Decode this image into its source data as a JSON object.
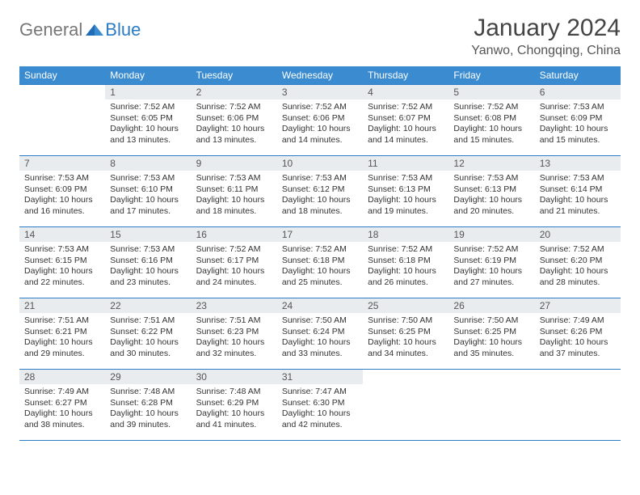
{
  "brand": {
    "part1": "General",
    "part2": "Blue",
    "logo_color": "#2b7cc4"
  },
  "title": "January 2024",
  "location": "Yanwo, Chongqing, China",
  "colors": {
    "header_bg": "#3a8bd0",
    "rule": "#2b7cc4",
    "daynum_bg": "#e9ecef"
  },
  "weekdays": [
    "Sunday",
    "Monday",
    "Tuesday",
    "Wednesday",
    "Thursday",
    "Friday",
    "Saturday"
  ],
  "weeks": [
    [
      null,
      {
        "n": "1",
        "sr": "7:52 AM",
        "ss": "6:05 PM",
        "dl": "10 hours and 13 minutes."
      },
      {
        "n": "2",
        "sr": "7:52 AM",
        "ss": "6:06 PM",
        "dl": "10 hours and 13 minutes."
      },
      {
        "n": "3",
        "sr": "7:52 AM",
        "ss": "6:06 PM",
        "dl": "10 hours and 14 minutes."
      },
      {
        "n": "4",
        "sr": "7:52 AM",
        "ss": "6:07 PM",
        "dl": "10 hours and 14 minutes."
      },
      {
        "n": "5",
        "sr": "7:52 AM",
        "ss": "6:08 PM",
        "dl": "10 hours and 15 minutes."
      },
      {
        "n": "6",
        "sr": "7:53 AM",
        "ss": "6:09 PM",
        "dl": "10 hours and 15 minutes."
      }
    ],
    [
      {
        "n": "7",
        "sr": "7:53 AM",
        "ss": "6:09 PM",
        "dl": "10 hours and 16 minutes."
      },
      {
        "n": "8",
        "sr": "7:53 AM",
        "ss": "6:10 PM",
        "dl": "10 hours and 17 minutes."
      },
      {
        "n": "9",
        "sr": "7:53 AM",
        "ss": "6:11 PM",
        "dl": "10 hours and 18 minutes."
      },
      {
        "n": "10",
        "sr": "7:53 AM",
        "ss": "6:12 PM",
        "dl": "10 hours and 18 minutes."
      },
      {
        "n": "11",
        "sr": "7:53 AM",
        "ss": "6:13 PM",
        "dl": "10 hours and 19 minutes."
      },
      {
        "n": "12",
        "sr": "7:53 AM",
        "ss": "6:13 PM",
        "dl": "10 hours and 20 minutes."
      },
      {
        "n": "13",
        "sr": "7:53 AM",
        "ss": "6:14 PM",
        "dl": "10 hours and 21 minutes."
      }
    ],
    [
      {
        "n": "14",
        "sr": "7:53 AM",
        "ss": "6:15 PM",
        "dl": "10 hours and 22 minutes."
      },
      {
        "n": "15",
        "sr": "7:53 AM",
        "ss": "6:16 PM",
        "dl": "10 hours and 23 minutes."
      },
      {
        "n": "16",
        "sr": "7:52 AM",
        "ss": "6:17 PM",
        "dl": "10 hours and 24 minutes."
      },
      {
        "n": "17",
        "sr": "7:52 AM",
        "ss": "6:18 PM",
        "dl": "10 hours and 25 minutes."
      },
      {
        "n": "18",
        "sr": "7:52 AM",
        "ss": "6:18 PM",
        "dl": "10 hours and 26 minutes."
      },
      {
        "n": "19",
        "sr": "7:52 AM",
        "ss": "6:19 PM",
        "dl": "10 hours and 27 minutes."
      },
      {
        "n": "20",
        "sr": "7:52 AM",
        "ss": "6:20 PM",
        "dl": "10 hours and 28 minutes."
      }
    ],
    [
      {
        "n": "21",
        "sr": "7:51 AM",
        "ss": "6:21 PM",
        "dl": "10 hours and 29 minutes."
      },
      {
        "n": "22",
        "sr": "7:51 AM",
        "ss": "6:22 PM",
        "dl": "10 hours and 30 minutes."
      },
      {
        "n": "23",
        "sr": "7:51 AM",
        "ss": "6:23 PM",
        "dl": "10 hours and 32 minutes."
      },
      {
        "n": "24",
        "sr": "7:50 AM",
        "ss": "6:24 PM",
        "dl": "10 hours and 33 minutes."
      },
      {
        "n": "25",
        "sr": "7:50 AM",
        "ss": "6:25 PM",
        "dl": "10 hours and 34 minutes."
      },
      {
        "n": "26",
        "sr": "7:50 AM",
        "ss": "6:25 PM",
        "dl": "10 hours and 35 minutes."
      },
      {
        "n": "27",
        "sr": "7:49 AM",
        "ss": "6:26 PM",
        "dl": "10 hours and 37 minutes."
      }
    ],
    [
      {
        "n": "28",
        "sr": "7:49 AM",
        "ss": "6:27 PM",
        "dl": "10 hours and 38 minutes."
      },
      {
        "n": "29",
        "sr": "7:48 AM",
        "ss": "6:28 PM",
        "dl": "10 hours and 39 minutes."
      },
      {
        "n": "30",
        "sr": "7:48 AM",
        "ss": "6:29 PM",
        "dl": "10 hours and 41 minutes."
      },
      {
        "n": "31",
        "sr": "7:47 AM",
        "ss": "6:30 PM",
        "dl": "10 hours and 42 minutes."
      },
      null,
      null,
      null
    ]
  ],
  "labels": {
    "sunrise": "Sunrise:",
    "sunset": "Sunset:",
    "daylight": "Daylight:"
  }
}
